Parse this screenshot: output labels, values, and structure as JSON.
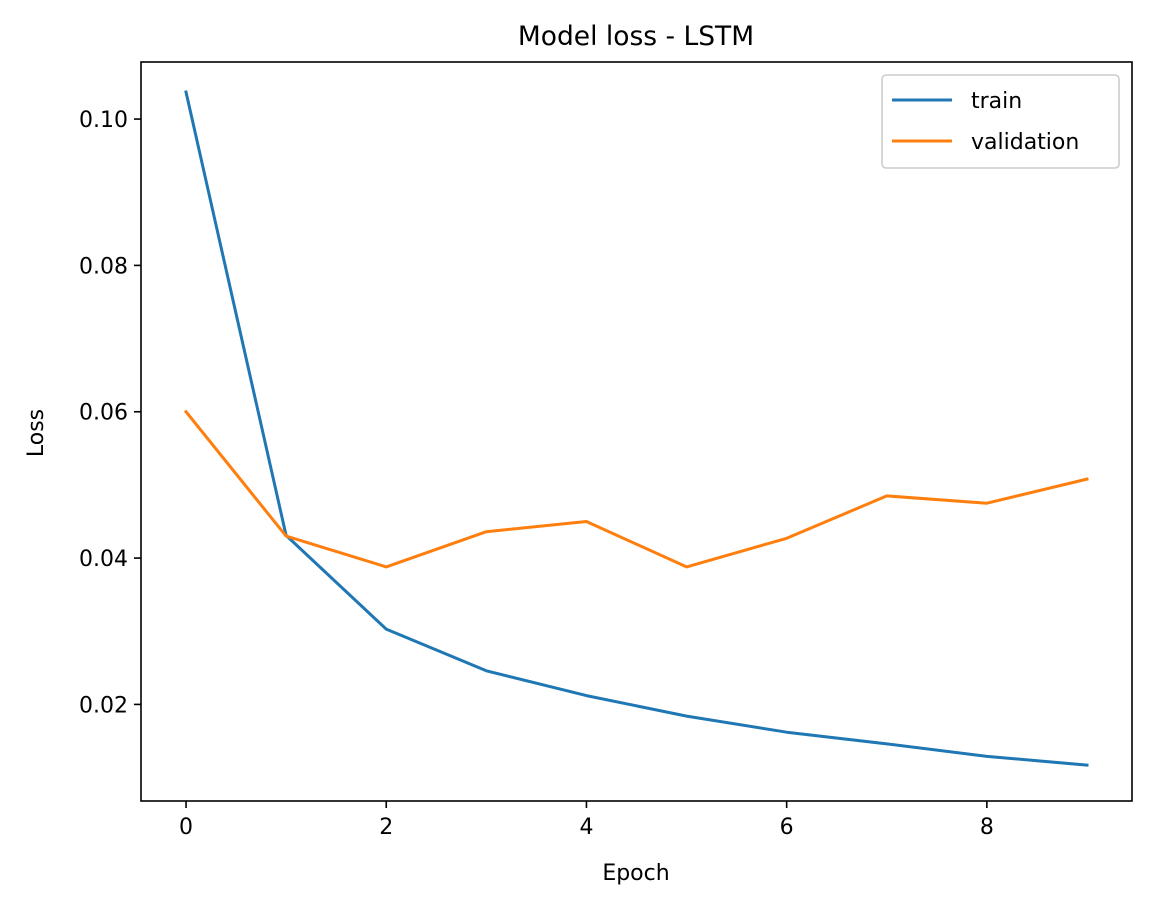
{
  "chart_data": {
    "type": "line",
    "title": "Model loss - LSTM",
    "xlabel": "Epoch",
    "ylabel": "Loss",
    "x": [
      0,
      1,
      2,
      3,
      4,
      5,
      6,
      7,
      8,
      9
    ],
    "xlim": [
      -0.45,
      9.45
    ],
    "ylim": [
      0.0068,
      0.1078
    ],
    "xticks": [
      0,
      2,
      4,
      6,
      8
    ],
    "xtick_labels": [
      "0",
      "2",
      "4",
      "6",
      "8"
    ],
    "yticks": [
      0.02,
      0.04,
      0.06,
      0.08,
      0.1
    ],
    "ytick_labels": [
      "0.02",
      "0.04",
      "0.06",
      "0.08",
      "0.10"
    ],
    "grid": false,
    "legend_position": "top-right",
    "series": [
      {
        "name": "train",
        "color": "#1f77b4",
        "values": [
          0.1037,
          0.0431,
          0.0303,
          0.0246,
          0.0212,
          0.0184,
          0.0162,
          0.0146,
          0.0129,
          0.0117
        ]
      },
      {
        "name": "validation",
        "color": "#ff7f0e",
        "values": [
          0.06,
          0.043,
          0.0388,
          0.0436,
          0.045,
          0.0388,
          0.0427,
          0.0485,
          0.0475,
          0.0508
        ]
      }
    ]
  }
}
